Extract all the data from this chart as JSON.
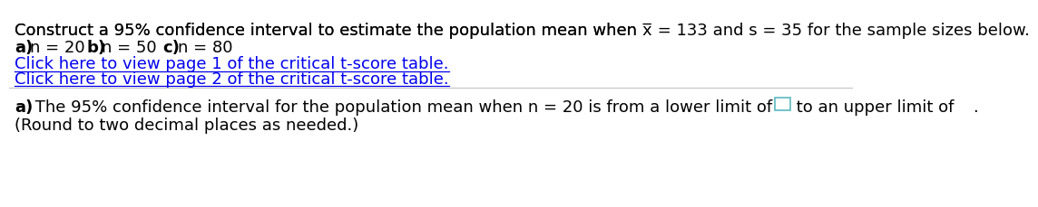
{
  "bg_color": "#ffffff",
  "line1_prefix": "Construct a 95% confidence interval to estimate the population mean when ",
  "line1_suffix": " = 133 and s = 35 for the sample sizes below.",
  "link1": "Click here to view page 1 of the critical t-score table.",
  "link2": "Click here to view page 2 of the critical t-score table.",
  "link_color": "#0000EE",
  "line4_bold": "a)",
  "line4_text": " The 95% confidence interval for the population mean when n = 20 is from a lower limit of",
  "line4_post": " to an upper limit of",
  "line4_end": ".",
  "line5": "(Round to two decimal places as needed.)",
  "box_color": "#5BB8C1",
  "font_size": 13
}
